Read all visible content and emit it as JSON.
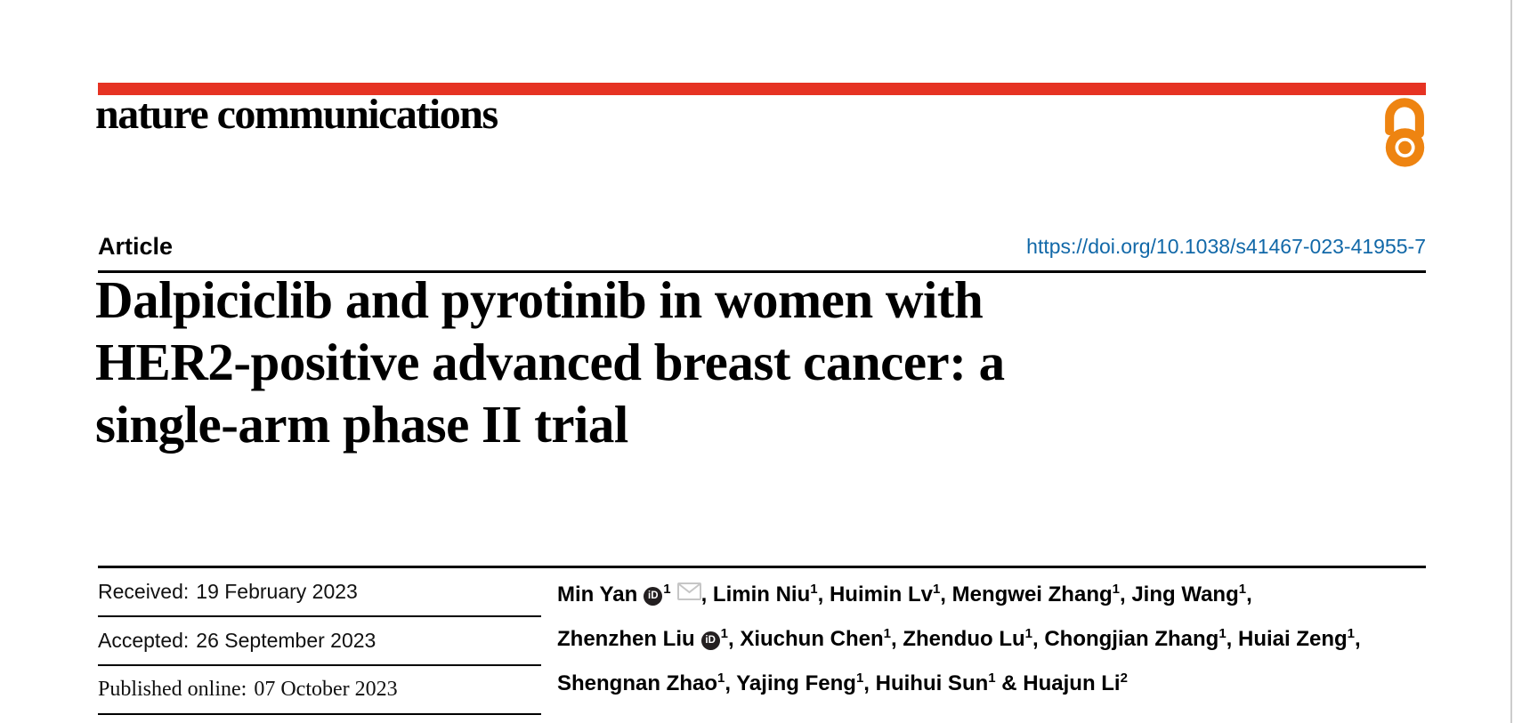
{
  "colors": {
    "brand_red": "#e63323",
    "doi_blue": "#1168a8",
    "open_access_orange": "#ee8411",
    "rule_black": "#000000",
    "mail_gray": "#c6c6c6",
    "page_edge_gray": "#cccccc"
  },
  "masthead": {
    "brand": "nature communications",
    "open_access_icon": "open-lock"
  },
  "article": {
    "kicker": "Article",
    "doi": "https://doi.org/10.1038/s41467-023-41955-7",
    "title_lines": [
      "Dalpiciclib and pyrotinib in women with",
      "HER2-positive advanced breast cancer: a",
      "single-arm phase II trial"
    ]
  },
  "history": [
    {
      "label": "Received:",
      "date": "19 February 2023"
    },
    {
      "label": "Accepted:",
      "date": "26 September 2023"
    },
    {
      "label": "Published online:",
      "date": "07 October 2023"
    }
  ],
  "authors": {
    "orcid_label": "iD",
    "lines": [
      [
        {
          "t": "Min Yan"
        },
        {
          "i": "orcid"
        },
        {
          "s": "1"
        },
        {
          "i": "mail"
        },
        {
          "t": ", Limin Niu"
        },
        {
          "s": "1"
        },
        {
          "t": ", Huimin Lv"
        },
        {
          "s": "1"
        },
        {
          "t": ", Mengwei Zhang"
        },
        {
          "s": "1"
        },
        {
          "t": ", Jing Wang"
        },
        {
          "s": "1"
        },
        {
          "t": ","
        }
      ],
      [
        {
          "t": "Zhenzhen Liu"
        },
        {
          "i": "orcid"
        },
        {
          "s": "1"
        },
        {
          "t": ", Xiuchun Chen"
        },
        {
          "s": "1"
        },
        {
          "t": ", Zhenduo Lu"
        },
        {
          "s": "1"
        },
        {
          "t": ", Chongjian Zhang"
        },
        {
          "s": "1"
        },
        {
          "t": ", Huiai Zeng"
        },
        {
          "s": "1"
        },
        {
          "t": ","
        }
      ],
      [
        {
          "t": "Shengnan Zhao"
        },
        {
          "s": "1"
        },
        {
          "t": ", Yajing Feng"
        },
        {
          "s": "1"
        },
        {
          "t": ", Huihui Sun"
        },
        {
          "s": "1"
        },
        {
          "t": " & Huajun Li"
        },
        {
          "s": "2"
        }
      ]
    ]
  }
}
